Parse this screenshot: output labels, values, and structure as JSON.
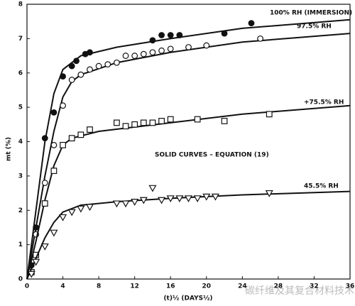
{
  "chart_data": {
    "type": "scatter",
    "xlabel": "(t)½ (DAYS½)",
    "ylabel": "mt (%)",
    "xlim": [
      0,
      36
    ],
    "xticks": [
      0,
      4,
      8,
      12,
      16,
      20,
      24,
      28,
      32,
      36
    ],
    "ylim": [
      0,
      8
    ],
    "yticks": [
      0,
      1,
      2,
      3,
      4,
      5,
      6,
      7,
      8
    ],
    "annotation": "SOLID CURVES – EQUATION (19)",
    "watermark": "碳纤维及其复合材料技术",
    "series": [
      {
        "name": "100% RH (IMMERSION)",
        "marker": "filled-circle",
        "color": "#111111",
        "x": [
          0.5,
          1,
          2,
          3,
          4,
          5,
          5.5,
          6.5,
          7,
          14,
          15,
          16,
          17,
          22,
          25
        ],
        "values": [
          0.4,
          1.5,
          4.1,
          4.85,
          5.9,
          6.2,
          6.35,
          6.55,
          6.6,
          6.95,
          7.1,
          7.1,
          7.1,
          7.15,
          7.45
        ],
        "curve_x": [
          0,
          1,
          2,
          3,
          4,
          6,
          10,
          16,
          24,
          36
        ],
        "curve_values": [
          0,
          2,
          4,
          5.4,
          6.1,
          6.5,
          6.75,
          7.0,
          7.3,
          7.55
        ]
      },
      {
        "name": "97.5% RH",
        "marker": "open-circle",
        "color": "#111111",
        "x": [
          1,
          2,
          3,
          4,
          5,
          6,
          7,
          8,
          9,
          10,
          11,
          12,
          13,
          14,
          15,
          16,
          18,
          20,
          26
        ],
        "values": [
          1.3,
          2.8,
          3.9,
          5.05,
          5.8,
          5.95,
          6.1,
          6.2,
          6.25,
          6.3,
          6.5,
          6.5,
          6.55,
          6.6,
          6.65,
          6.7,
          6.75,
          6.8,
          7.0
        ],
        "curve_x": [
          0,
          1,
          2,
          3,
          4,
          5,
          6,
          10,
          16,
          24,
          36
        ],
        "curve_values": [
          0,
          1.5,
          3,
          4.3,
          5.3,
          5.75,
          5.95,
          6.3,
          6.6,
          6.9,
          7.15
        ]
      },
      {
        "name": "+75.5% RH",
        "marker": "square",
        "color": "#111111",
        "x": [
          0.5,
          1,
          2,
          3,
          4,
          5,
          6,
          7,
          10,
          11,
          12,
          13,
          14,
          15,
          16,
          19,
          22,
          27
        ],
        "values": [
          0.2,
          0.7,
          2.2,
          3.15,
          3.9,
          4.1,
          4.2,
          4.35,
          4.55,
          4.45,
          4.5,
          4.55,
          4.55,
          4.6,
          4.65,
          4.65,
          4.6,
          4.8
        ],
        "curve_x": [
          0,
          1,
          2,
          3,
          4,
          5,
          8,
          16,
          24,
          36
        ],
        "curve_values": [
          0,
          1.1,
          2.3,
          3.3,
          3.9,
          4.1,
          4.3,
          4.55,
          4.8,
          5.05
        ]
      },
      {
        "name": "45.5% RH",
        "marker": "triangle-down",
        "color": "#111111",
        "x": [
          0.5,
          1,
          2,
          3,
          4,
          5,
          6,
          7,
          10,
          11,
          12,
          13,
          14,
          15,
          16,
          17,
          18,
          19,
          20,
          21,
          27
        ],
        "values": [
          0.15,
          0.5,
          0.95,
          1.35,
          1.8,
          1.95,
          2.05,
          2.1,
          2.2,
          2.2,
          2.25,
          2.3,
          2.65,
          2.3,
          2.35,
          2.35,
          2.35,
          2.35,
          2.4,
          2.4,
          2.5
        ],
        "curve_x": [
          0,
          1,
          2,
          3,
          4,
          6,
          10,
          16,
          24,
          36
        ],
        "curve_values": [
          0,
          0.6,
          1.2,
          1.65,
          1.95,
          2.15,
          2.25,
          2.35,
          2.45,
          2.55
        ]
      }
    ]
  }
}
